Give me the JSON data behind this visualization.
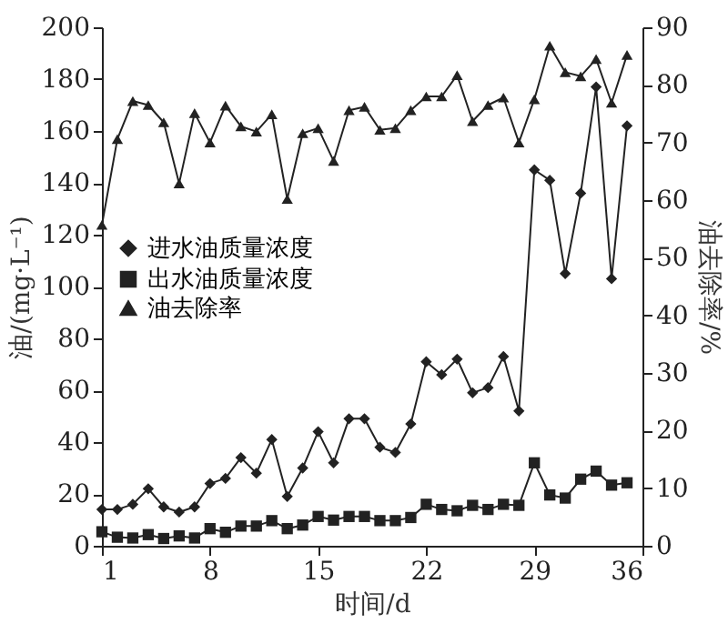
{
  "chart_data": {
    "type": "line",
    "xlabel": "时间/d",
    "ylabel": "油/(mg·L⁻¹)",
    "y2label": "油去除率/%",
    "x": [
      1,
      2,
      3,
      4,
      5,
      6,
      7,
      8,
      9,
      10,
      11,
      12,
      13,
      14,
      15,
      16,
      17,
      18,
      19,
      20,
      21,
      22,
      23,
      24,
      25,
      26,
      27,
      28,
      29,
      30,
      31,
      32,
      33,
      34,
      35
    ],
    "xlim": [
      1,
      36
    ],
    "xticks": [
      1,
      8,
      15,
      22,
      29,
      36
    ],
    "ylim": [
      0,
      200
    ],
    "yticks": [
      0,
      20,
      40,
      60,
      80,
      100,
      120,
      140,
      160,
      180,
      200
    ],
    "y2lim": [
      0,
      90
    ],
    "y2ticks": [
      0,
      10,
      20,
      30,
      40,
      50,
      60,
      70,
      80,
      90
    ],
    "grid": false,
    "legend": "left",
    "line_style": "solid",
    "series": [
      {
        "name": "进水油质量浓度",
        "color": "#222222",
        "marker": "diamond",
        "axis": "y",
        "values": [
          14,
          14,
          16,
          22,
          15,
          13,
          15,
          24,
          26,
          34,
          28,
          41,
          19,
          30,
          44,
          32,
          49,
          49,
          38,
          36,
          47,
          71,
          66,
          72,
          59,
          61,
          73,
          52,
          145,
          141,
          105,
          136,
          177,
          103,
          162
        ]
      },
      {
        "name": "出水油质量浓度",
        "color": "#222222",
        "marker": "square",
        "axis": "y",
        "values": [
          5.4,
          3.3,
          3,
          4.3,
          2.8,
          3.8,
          3,
          6.6,
          5.2,
          7.6,
          7.6,
          9.7,
          6.6,
          8,
          11.3,
          9.9,
          11.3,
          11.3,
          9.7,
          9.7,
          10.9,
          16,
          14,
          13.5,
          15.6,
          14,
          16,
          15.6,
          32,
          19.6,
          18.4,
          25.7,
          28.8,
          23.4,
          24.3
        ]
      },
      {
        "name": "油去除率",
        "color": "#222222",
        "marker": "triangle",
        "axis": "y2",
        "values": [
          55.7,
          70.6,
          77.2,
          76.5,
          73.5,
          62.9,
          75.1,
          70,
          76.4,
          72.8,
          71.9,
          74.9,
          60.2,
          71.6,
          72.5,
          66.8,
          75.6,
          76.2,
          72.2,
          72.5,
          75.6,
          78,
          78,
          81.7,
          73.7,
          76.5,
          77.8,
          70,
          77.5,
          86.8,
          82.2,
          81.5,
          84.5,
          76.9,
          85.2
        ]
      }
    ]
  }
}
